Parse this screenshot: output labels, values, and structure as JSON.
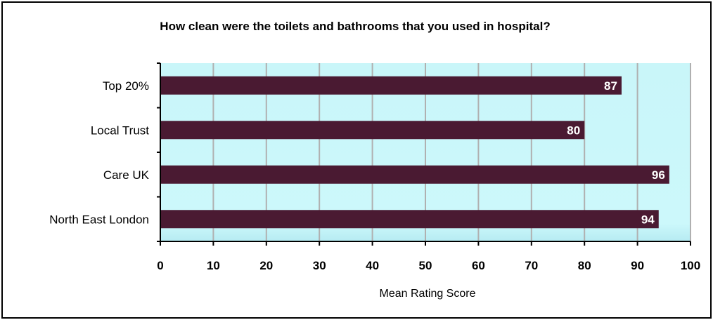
{
  "chart_data": {
    "type": "bar",
    "orientation": "horizontal",
    "title": "How clean were the toilets and bathrooms that you used in hospital?",
    "xlabel": "Mean Rating Score",
    "ylabel": "",
    "categories": [
      "Top 20%",
      "Local Trust",
      "Care UK",
      "North East London"
    ],
    "values": [
      87,
      80,
      96,
      94
    ],
    "data_labels": [
      "87",
      "80",
      "96",
      "94"
    ],
    "xlim": [
      0,
      100
    ],
    "x_ticks": [
      0,
      10,
      20,
      30,
      40,
      50,
      60,
      70,
      80,
      90,
      100
    ],
    "x_tick_labels": [
      "0",
      "10",
      "20",
      "30",
      "40",
      "50",
      "60",
      "70",
      "80",
      "90",
      "100"
    ],
    "grid": true,
    "legend": "none",
    "colors": {
      "bar": "#4a1a32",
      "plot_background": "#ccf8fb",
      "gridline": "#b0b0b0",
      "data_label": "#ffffff"
    }
  }
}
